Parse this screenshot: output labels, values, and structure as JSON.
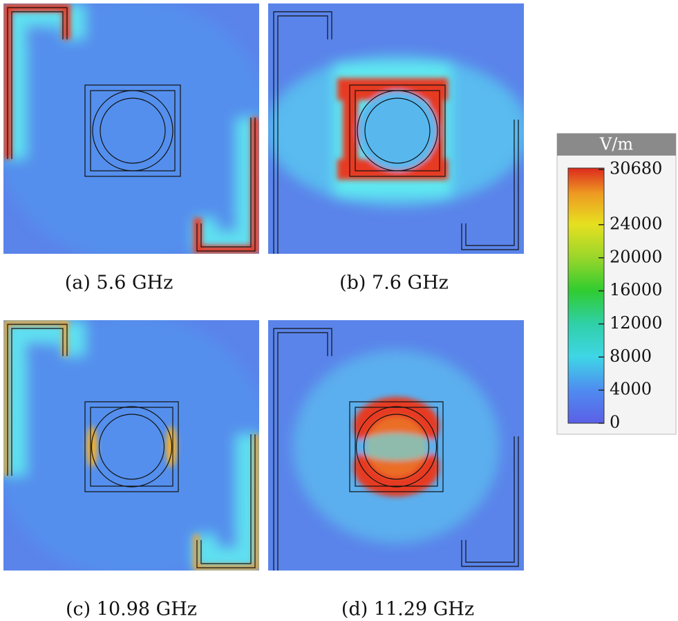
{
  "panels": [
    {
      "caption": "(a) 5.6 GHz"
    },
    {
      "caption": "(b) 7.6 GHz"
    },
    {
      "caption": "(c) 10.98 GHz"
    },
    {
      "caption": "(d) 11.29 GHz"
    }
  ],
  "colorbar": {
    "title": "V/m",
    "range": [
      0,
      30680
    ],
    "ticks": [
      30680,
      24000,
      20000,
      16000,
      12000,
      8000,
      4000,
      0
    ]
  }
}
